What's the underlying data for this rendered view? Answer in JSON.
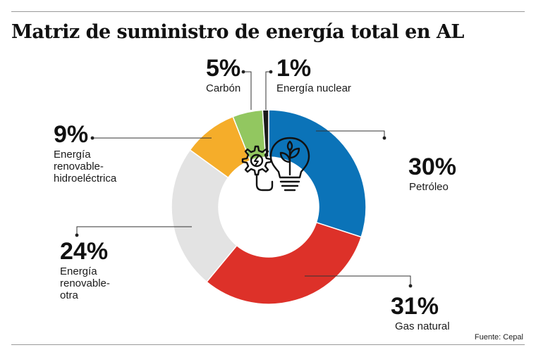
{
  "header": {
    "title": "Matriz de suministro de energía total en AL"
  },
  "source": "Fuente: Cepal",
  "chart_data": {
    "type": "pie",
    "variant": "donut",
    "title": "Matriz de suministro de energía total en AL",
    "unit": "%",
    "slices": [
      {
        "name": "Petróleo",
        "value": 30,
        "label": "30%",
        "color": "#0b73b8"
      },
      {
        "name": "Gas natural",
        "value": 31,
        "label": "31%",
        "color": "#dd3129"
      },
      {
        "name": "Energía renovable-otra",
        "value": 24,
        "label": "24%",
        "color": "#e3e3e3"
      },
      {
        "name": "Energía renovable-hidroeléctrica",
        "value": 9,
        "label": "9%",
        "color": "#f5ad2a"
      },
      {
        "name": "Carbón",
        "value": 5,
        "label": "5%",
        "color": "#92c760"
      },
      {
        "name": "Energía nuclear",
        "value": 1,
        "label": "1%",
        "color": "#1a1a1a"
      }
    ],
    "label_lines": [
      [
        "Petróleo"
      ],
      [
        "Gas natural"
      ],
      [
        "Energía",
        "renovable-",
        "otra"
      ],
      [
        "Energía",
        "renovable-",
        "hidroeléctrica"
      ],
      [
        "Carbón"
      ],
      [
        "Energía nuclear"
      ]
    ],
    "center_icon": "lightbulb-gear-icon"
  }
}
